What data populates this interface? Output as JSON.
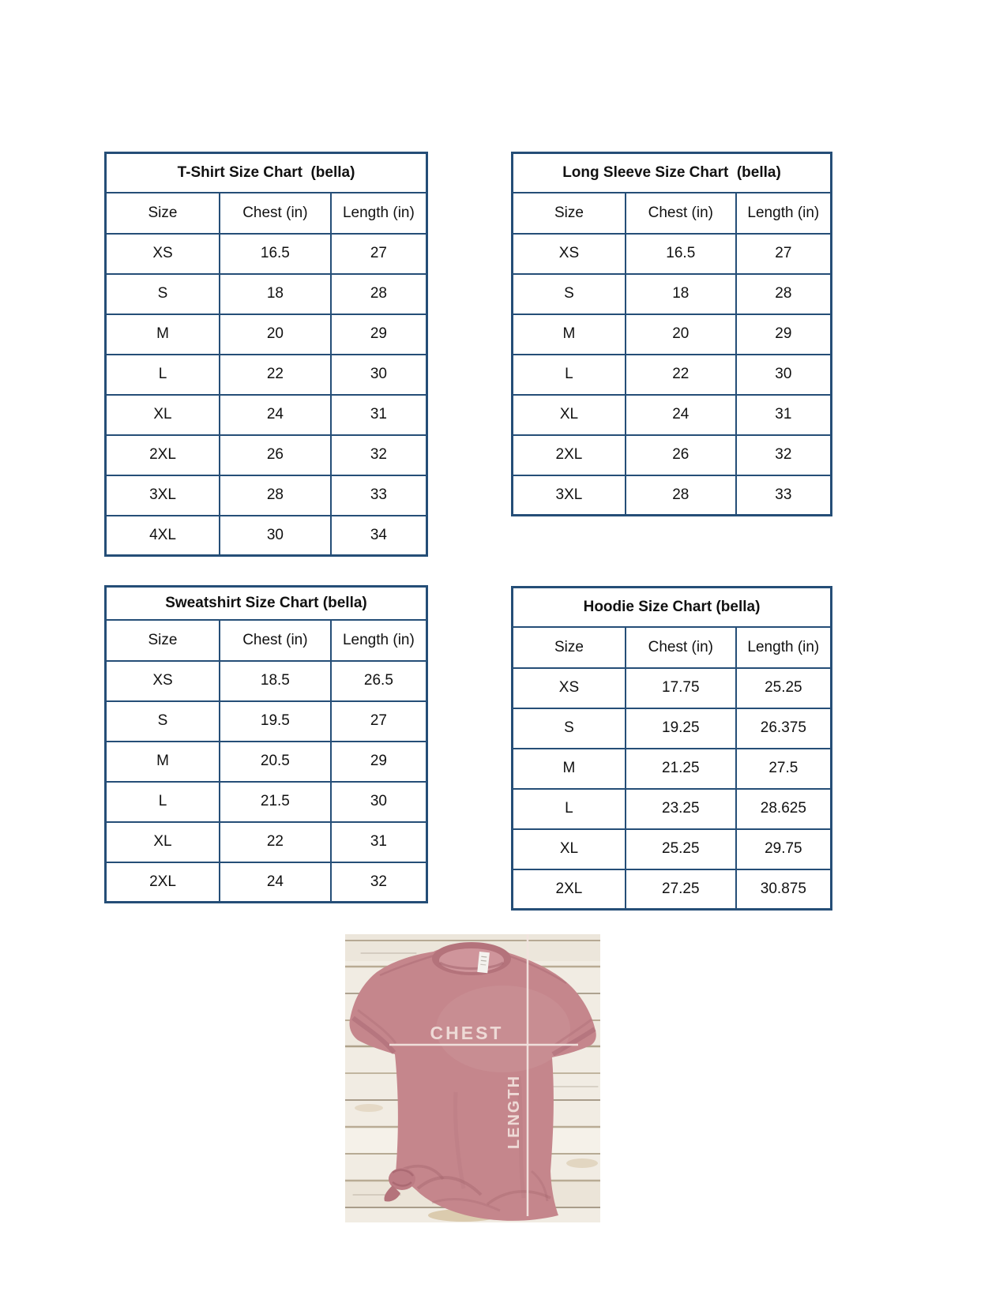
{
  "colors": {
    "table_border": "#254e77",
    "page_background": "#ffffff",
    "shirt_color": "#c5868c",
    "measure_line_color": "#f2e3df"
  },
  "tables": [
    {
      "id": "tshirt",
      "title": "T-Shirt Size Chart  (bella)",
      "columns": [
        "Size",
        "Chest (in)",
        "Length (in)"
      ],
      "rows": [
        [
          "XS",
          "16.5",
          "27"
        ],
        [
          "S",
          "18",
          "28"
        ],
        [
          "M",
          "20",
          "29"
        ],
        [
          "L",
          "22",
          "30"
        ],
        [
          "XL",
          "24",
          "31"
        ],
        [
          "2XL",
          "26",
          "32"
        ],
        [
          "3XL",
          "28",
          "33"
        ],
        [
          "4XL",
          "30",
          "34"
        ]
      ]
    },
    {
      "id": "longsleeve",
      "title": "Long Sleeve Size Chart  (bella)",
      "columns": [
        "Size",
        "Chest (in)",
        "Length (in)"
      ],
      "rows": [
        [
          "XS",
          "16.5",
          "27"
        ],
        [
          "S",
          "18",
          "28"
        ],
        [
          "M",
          "20",
          "29"
        ],
        [
          "L",
          "22",
          "30"
        ],
        [
          "XL",
          "24",
          "31"
        ],
        [
          "2XL",
          "26",
          "32"
        ],
        [
          "3XL",
          "28",
          "33"
        ]
      ]
    },
    {
      "id": "sweatshirt",
      "title": "Sweatshirt Size Chart (bella)",
      "columns": [
        "Size",
        "Chest (in)",
        "Length (in)"
      ],
      "rows": [
        [
          "XS",
          "18.5",
          "26.5"
        ],
        [
          "S",
          "19.5",
          "27"
        ],
        [
          "M",
          "20.5",
          "29"
        ],
        [
          "L",
          "21.5",
          "30"
        ],
        [
          "XL",
          "22",
          "31"
        ],
        [
          "2XL",
          "24",
          "32"
        ]
      ]
    },
    {
      "id": "hoodie",
      "title": "Hoodie Size Chart (bella)",
      "columns": [
        "Size",
        "Chest (in)",
        "Length (in)"
      ],
      "rows": [
        [
          "XS",
          "17.75",
          "25.25"
        ],
        [
          "S",
          "19.25",
          "26.375"
        ],
        [
          "M",
          "21.25",
          "27.5"
        ],
        [
          "L",
          "23.25",
          "28.625"
        ],
        [
          "XL",
          "25.25",
          "29.75"
        ],
        [
          "2XL",
          "27.25",
          "30.875"
        ]
      ]
    }
  ],
  "photo": {
    "chest_label": "CHEST",
    "length_label": "LENGTH"
  }
}
